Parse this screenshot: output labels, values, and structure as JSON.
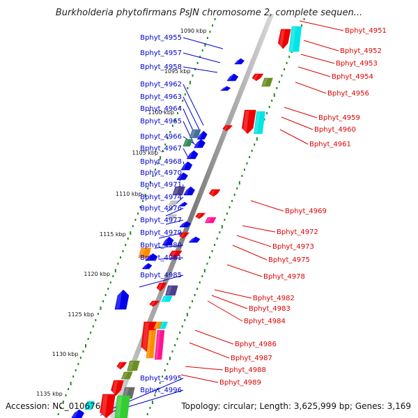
{
  "title": "Burkholderia phytofirmans PsJN chromosome 2, complete sequen...",
  "footer": {
    "accession": "Accession: NC_010676",
    "info": "Topology: circular; Length: 3,625,999 bp; Genes: 3,169"
  },
  "colors": {
    "left_label": "#0000cc",
    "right_label": "#dd0000",
    "forward_strand": "#ee0000",
    "reverse_strand": "#0000ee",
    "backbone": "#808080",
    "tick_dots": "#228b22"
  },
  "ticks": [
    "1090 kbp",
    "1095 kbp",
    "1100 kbp",
    "1105 kbp",
    "1110 kbp",
    "1115 kbp",
    "1120 kbp",
    "1125 kbp",
    "1130 kbp",
    "1135 kbp"
  ],
  "left_labels": [
    "Bphyt_4955",
    "Bphyt_4957",
    "Bphyt_4958",
    "Bphyt_4962",
    "Bphyt_4963",
    "Bphyt_4964",
    "Bphyt_4965",
    "Bphyt_4966",
    "Bphyt_4967",
    "Bphyt_4968",
    "Bphyt_4970",
    "Bphyt_4971",
    "Bphyt_4974",
    "Bphyt_4976",
    "Bphyt_4977",
    "Bphyt_4979",
    "Bphyt_4980",
    "Bphyt_4981",
    "Bphyt_4985",
    "Bphyt_4995",
    "Bphyt_4996"
  ],
  "right_labels": [
    "Bphyt_4951",
    "Bphyt_4952",
    "Bphyt_4953",
    "Bphyt_4954",
    "Bphyt_4956",
    "Bphyt_4959",
    "Bphyt_4960",
    "Bphyt_4961",
    "Bphyt_4969",
    "Bphyt_4972",
    "Bphyt_4973",
    "Bphyt_4975",
    "Bphyt_4978",
    "Bphyt_4982",
    "Bphyt_4983",
    "Bphyt_4984",
    "Bphyt_4986",
    "Bphyt_4987",
    "Bphyt_4988",
    "Bphyt_4989"
  ]
}
